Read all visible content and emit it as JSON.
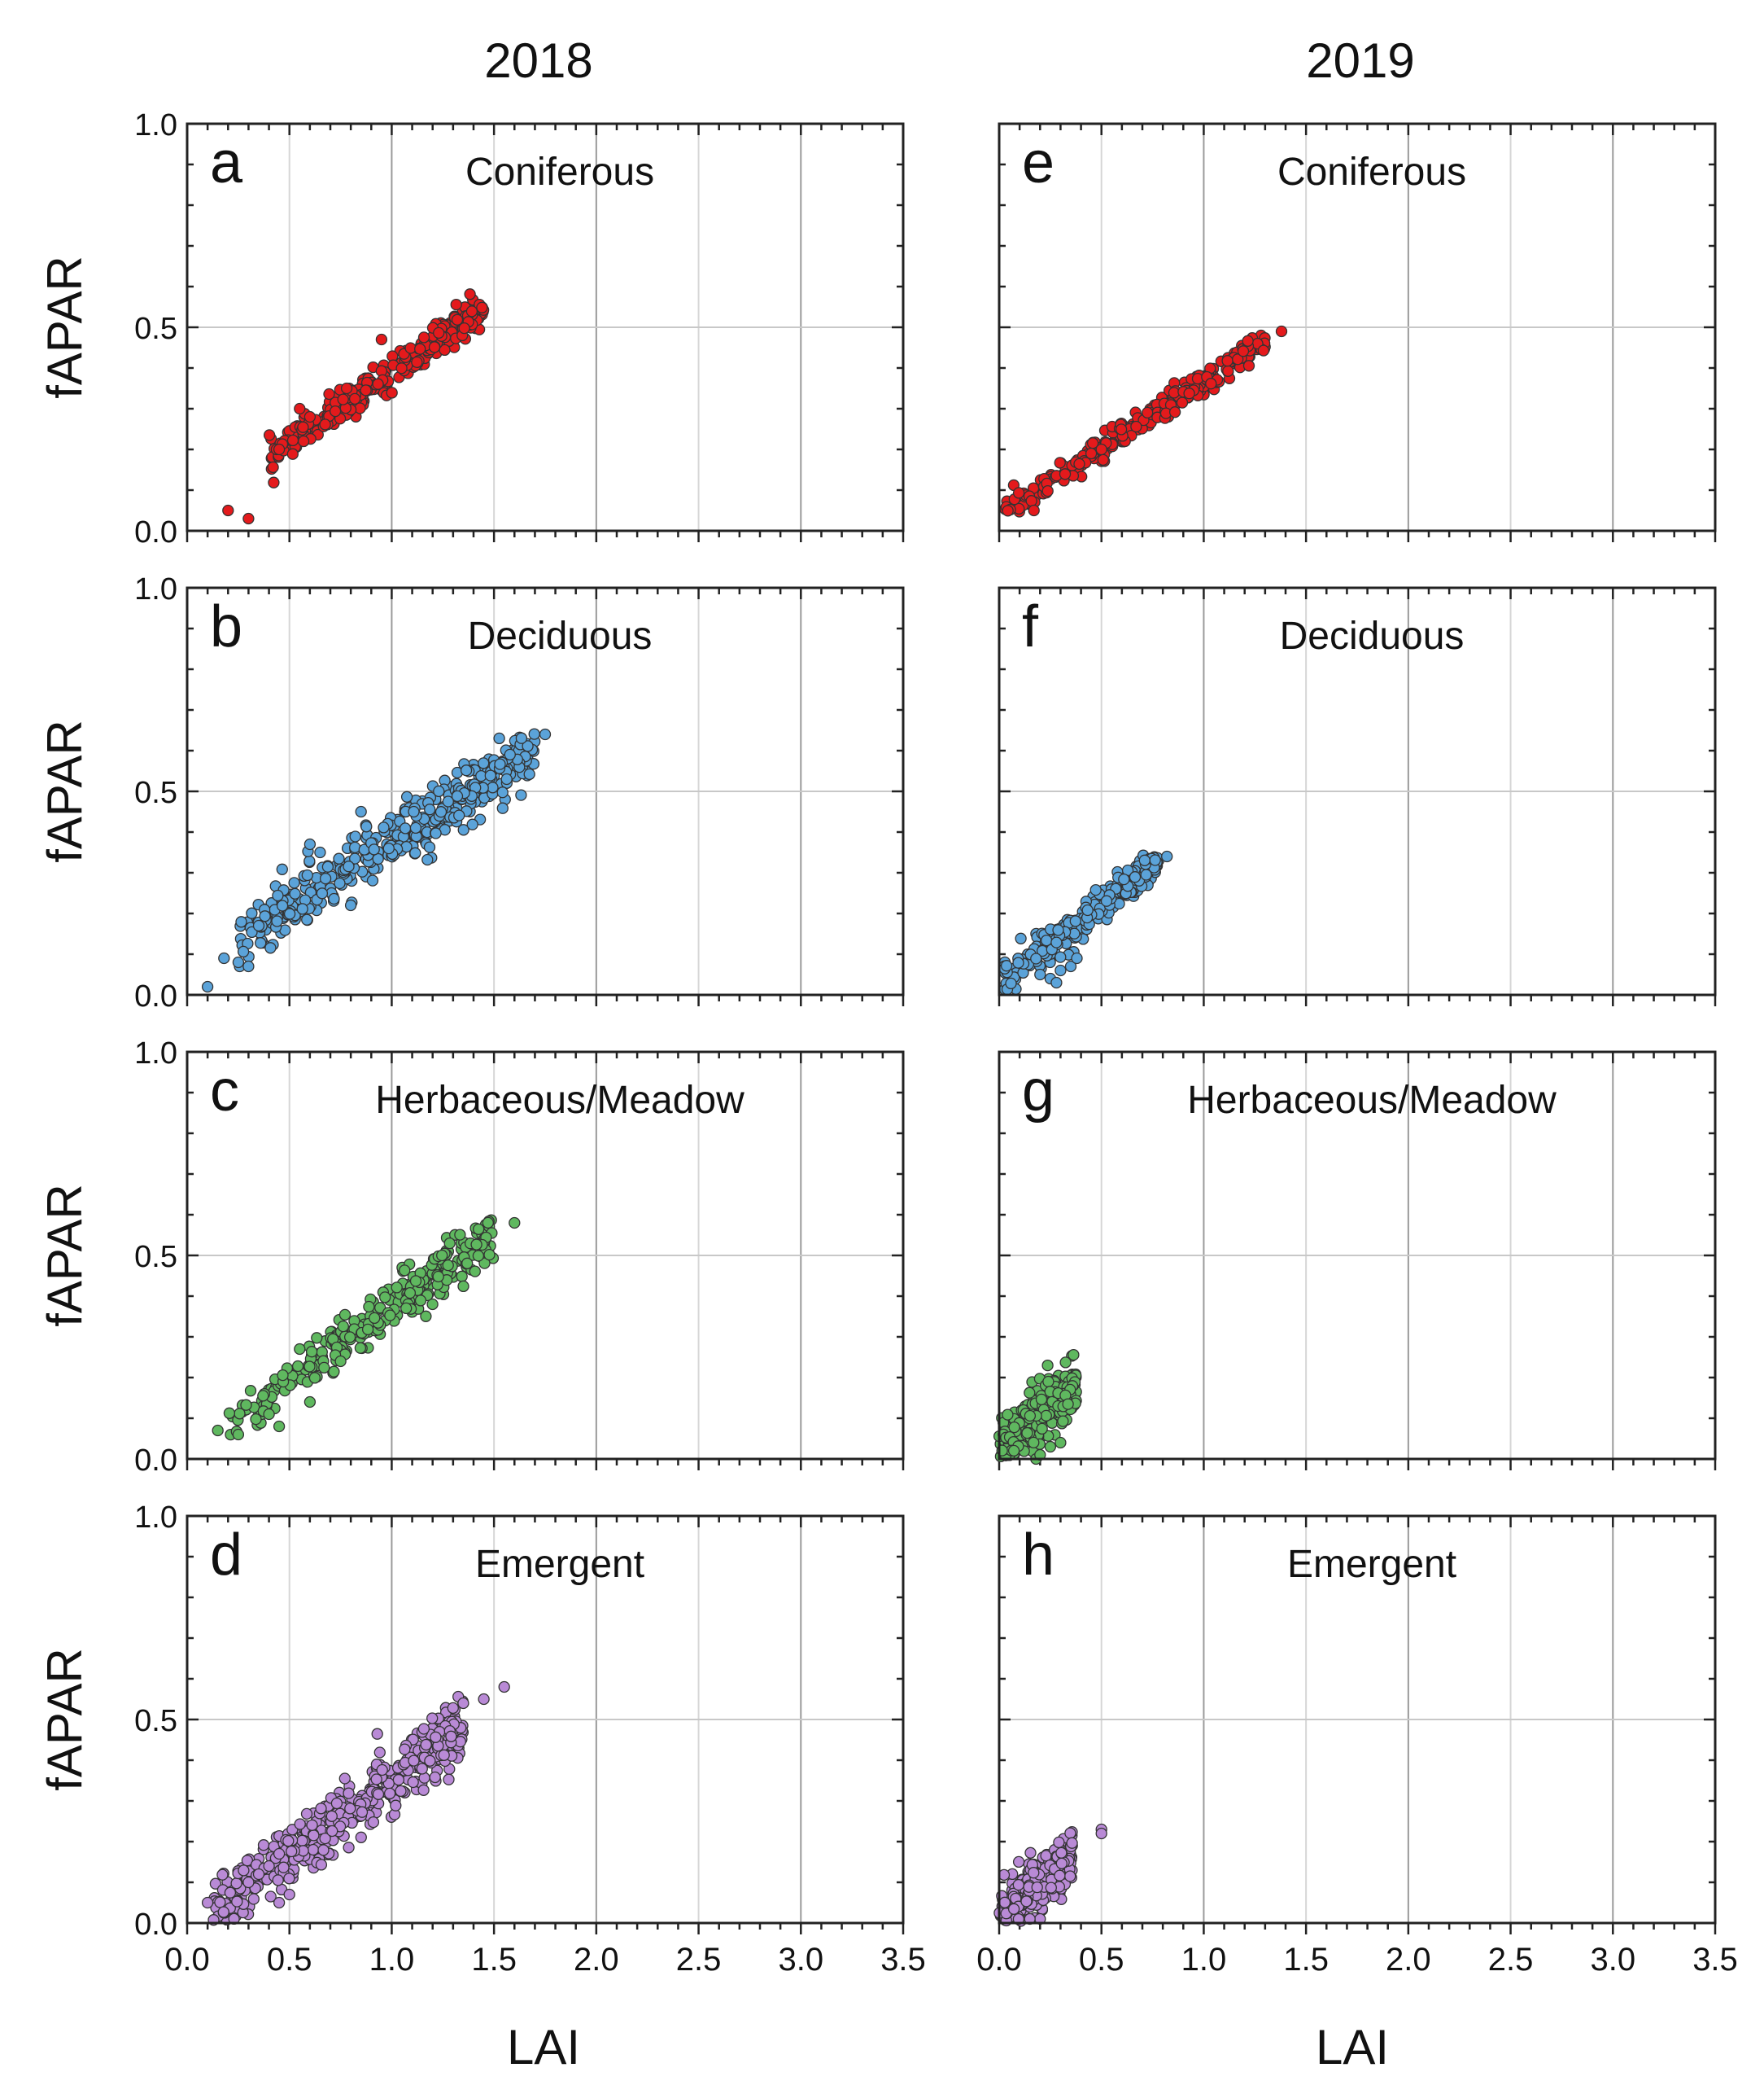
{
  "figure": {
    "column_titles": [
      "2018",
      "2019"
    ],
    "ylabel": "fAPAR",
    "xlabel": "LAI"
  },
  "chart_data": [
    {
      "type": "scatter",
      "panel": "a",
      "title": "Coniferous",
      "year": "2018",
      "color": "#e41a1c",
      "xlim": [
        0,
        3.5
      ],
      "ylim": [
        0,
        1.0
      ],
      "xticks": [
        "0.0",
        "0.5",
        "1.0",
        "1.5",
        "2.0",
        "2.5",
        "3.0",
        "3.5"
      ],
      "yticks": [
        "0.0",
        "0.5",
        "1.0"
      ],
      "trend": {
        "x0": 0.4,
        "x1": 1.45,
        "slope": 0.35,
        "intercept": 0.04,
        "spread": 0.02,
        "n": 300
      },
      "outliers": [
        [
          0.2,
          0.05
        ],
        [
          0.3,
          0.03
        ],
        [
          0.6,
          0.28
        ],
        [
          0.95,
          0.47
        ],
        [
          0.45,
          0.2
        ],
        [
          0.55,
          0.3
        ],
        [
          0.78,
          0.35
        ]
      ]
    },
    {
      "type": "scatter",
      "panel": "b",
      "title": "Deciduous",
      "year": "2018",
      "color": "#5ba3d9",
      "xlim": [
        0,
        3.5
      ],
      "ylim": [
        0,
        1.0
      ],
      "xticks": [
        "0.0",
        "0.5",
        "1.0",
        "1.5",
        "2.0",
        "2.5",
        "3.0",
        "3.5"
      ],
      "yticks": [
        "0.0",
        "0.5",
        "1.0"
      ],
      "trend": {
        "x0": 0.25,
        "x1": 1.7,
        "slope": 0.325,
        "intercept": 0.05,
        "spread": 0.035,
        "n": 420
      },
      "outliers": [
        [
          0.1,
          0.02
        ],
        [
          0.25,
          0.08
        ],
        [
          0.3,
          0.07
        ],
        [
          0.18,
          0.09
        ],
        [
          0.8,
          0.22
        ],
        [
          1.75,
          0.64
        ],
        [
          0.65,
          0.35
        ],
        [
          0.6,
          0.37
        ],
        [
          0.85,
          0.45
        ],
        [
          0.35,
          0.17
        ]
      ]
    },
    {
      "type": "scatter",
      "panel": "c",
      "title": "Herbaceous/Meadow",
      "year": "2018",
      "color": "#5fb85f",
      "xlim": [
        0,
        3.5
      ],
      "ylim": [
        0,
        1.0
      ],
      "xticks": [
        "0.0",
        "0.5",
        "1.0",
        "1.5",
        "2.0",
        "2.5",
        "3.0",
        "3.5"
      ],
      "yticks": [
        "0.0",
        "0.5",
        "1.0"
      ],
      "trend": {
        "x0": 0.2,
        "x1": 1.5,
        "slope": 0.365,
        "intercept": 0.01,
        "spread": 0.03,
        "n": 300
      },
      "outliers": [
        [
          0.15,
          0.07
        ],
        [
          0.25,
          0.06
        ],
        [
          0.45,
          0.08
        ],
        [
          0.6,
          0.14
        ],
        [
          1.6,
          0.58
        ],
        [
          0.75,
          0.24
        ],
        [
          0.55,
          0.27
        ],
        [
          0.4,
          0.11
        ]
      ]
    },
    {
      "type": "scatter",
      "panel": "d",
      "title": "Emergent",
      "year": "2018",
      "color": "#b98ad6",
      "xlim": [
        0,
        3.5
      ],
      "ylim": [
        0,
        1.0
      ],
      "xticks": [
        "0.0",
        "0.5",
        "1.0",
        "1.5",
        "2.0",
        "2.5",
        "3.0",
        "3.5"
      ],
      "yticks": [
        "0.0",
        "0.5",
        "1.0"
      ],
      "trend": {
        "x0": 0.12,
        "x1": 1.35,
        "slope": 0.37,
        "intercept": -0.02,
        "spread": 0.04,
        "n": 450
      },
      "outliers": [
        [
          0.1,
          0.05
        ],
        [
          1.45,
          0.55
        ],
        [
          1.55,
          0.58
        ],
        [
          1.35,
          0.54
        ],
        [
          0.45,
          0.05
        ],
        [
          0.5,
          0.07
        ],
        [
          0.3,
          0.1
        ],
        [
          0.4,
          0.14
        ],
        [
          0.35,
          0.12
        ],
        [
          0.45,
          0.17
        ]
      ]
    },
    {
      "type": "scatter",
      "panel": "e",
      "title": "Coniferous",
      "year": "2019",
      "color": "#e41a1c",
      "xlim": [
        0,
        3.5
      ],
      "ylim": [
        0,
        1.0
      ],
      "xticks": [
        "0.0",
        "0.5",
        "1.0",
        "1.5",
        "2.0",
        "2.5",
        "3.0",
        "3.5"
      ],
      "yticks": [
        "0.0",
        "0.5",
        "1.0"
      ],
      "trend": {
        "x0": 0.02,
        "x1": 1.3,
        "slope": 0.33,
        "intercept": 0.04,
        "spread": 0.015,
        "n": 280
      },
      "outliers": [
        [
          0.17,
          0.05
        ],
        [
          1.38,
          0.49
        ],
        [
          0.5,
          0.2
        ],
        [
          0.45,
          0.19
        ]
      ]
    },
    {
      "type": "scatter",
      "panel": "f",
      "title": "Deciduous",
      "year": "2019",
      "color": "#5ba3d9",
      "xlim": [
        0,
        3.5
      ],
      "ylim": [
        0,
        1.0
      ],
      "xticks": [
        "0.0",
        "0.5",
        "1.0",
        "1.5",
        "2.0",
        "2.5",
        "3.0",
        "3.5"
      ],
      "yticks": [
        "0.0",
        "0.5",
        "1.0"
      ],
      "trend": {
        "x0": 0.02,
        "x1": 0.78,
        "slope": 0.38,
        "intercept": 0.03,
        "spread": 0.02,
        "n": 250
      },
      "outliers": [
        [
          0.82,
          0.34
        ],
        [
          0.3,
          0.06
        ],
        [
          0.35,
          0.07
        ],
        [
          0.25,
          0.04
        ],
        [
          0.2,
          0.05
        ],
        [
          0.38,
          0.09
        ],
        [
          0.28,
          0.03
        ]
      ]
    },
    {
      "type": "scatter",
      "panel": "g",
      "title": "Herbaceous/Meadow",
      "year": "2019",
      "color": "#5fb85f",
      "xlim": [
        0,
        3.5
      ],
      "ylim": [
        0,
        1.0
      ],
      "xticks": [
        "0.0",
        "0.5",
        "1.0",
        "1.5",
        "2.0",
        "2.5",
        "3.0",
        "3.5"
      ],
      "yticks": [
        "0.0",
        "0.5",
        "1.0"
      ],
      "trend": {
        "x0": 0.0,
        "x1": 0.38,
        "slope": 0.38,
        "intercept": 0.03,
        "spread": 0.035,
        "n": 280
      },
      "outliers": [
        [
          0.18,
          0.0
        ],
        [
          0.2,
          0.01
        ],
        [
          0.25,
          0.03
        ],
        [
          0.3,
          0.04
        ]
      ]
    },
    {
      "type": "scatter",
      "panel": "h",
      "title": "Emergent",
      "year": "2019",
      "color": "#b98ad6",
      "xlim": [
        0,
        3.5
      ],
      "ylim": [
        0,
        1.0
      ],
      "xticks": [
        "0.0",
        "0.5",
        "1.0",
        "1.5",
        "2.0",
        "2.5",
        "3.0",
        "3.5"
      ],
      "yticks": [
        "0.0",
        "0.5",
        "1.0"
      ],
      "trend": {
        "x0": 0.0,
        "x1": 0.36,
        "slope": 0.42,
        "intercept": 0.02,
        "spread": 0.035,
        "n": 280
      },
      "outliers": [
        [
          0.5,
          0.23
        ],
        [
          0.5,
          0.22
        ],
        [
          0.2,
          0.01
        ],
        [
          0.15,
          0.01
        ]
      ]
    }
  ]
}
